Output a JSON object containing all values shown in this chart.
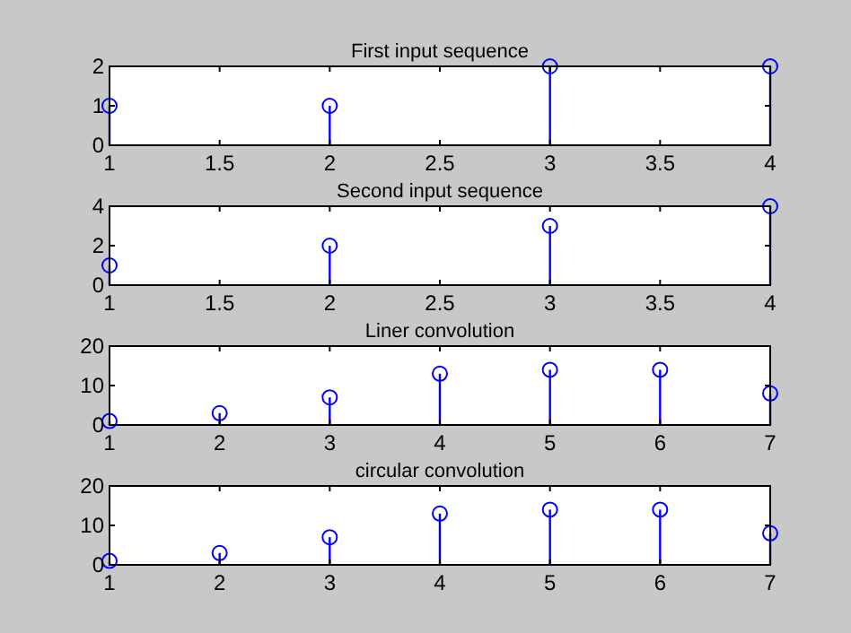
{
  "chart_data": [
    {
      "type": "lollipop",
      "title": "First input sequence",
      "x": [
        1,
        2,
        3,
        4
      ],
      "values": [
        1,
        1,
        2,
        2
      ],
      "color": "#0000ff",
      "marker": "circle",
      "xlim": [
        1,
        4
      ],
      "xticks": [
        1,
        1.5,
        2,
        2.5,
        3,
        3.5,
        4
      ],
      "ylim": [
        0,
        2
      ],
      "yticks": [
        0,
        1,
        2
      ]
    },
    {
      "type": "lollipop",
      "title": "Second input sequence",
      "x": [
        1,
        2,
        3,
        4
      ],
      "values": [
        1,
        2,
        3,
        4
      ],
      "color": "#0000ff",
      "marker": "circle",
      "xlim": [
        1,
        4
      ],
      "xticks": [
        1,
        1.5,
        2,
        2.5,
        3,
        3.5,
        4
      ],
      "ylim": [
        0,
        4
      ],
      "yticks": [
        0,
        2,
        4
      ]
    },
    {
      "type": "lollipop",
      "title": "Liner convolution",
      "x": [
        1,
        2,
        3,
        4,
        5,
        6,
        7
      ],
      "values": [
        1,
        3,
        7,
        13,
        14,
        14,
        8
      ],
      "color": "#0000ff",
      "marker": "circle",
      "xlim": [
        1,
        7
      ],
      "xticks": [
        1,
        2,
        3,
        4,
        5,
        6,
        7
      ],
      "ylim": [
        0,
        20
      ],
      "yticks": [
        0,
        10,
        20
      ]
    },
    {
      "type": "lollipop",
      "title": "circular convolution",
      "x": [
        1,
        2,
        3,
        4,
        5,
        6,
        7
      ],
      "values": [
        1,
        3,
        7,
        13,
        14,
        14,
        8
      ],
      "color": "#0000ff",
      "marker": "circle",
      "xlim": [
        1,
        7
      ],
      "xticks": [
        1,
        2,
        3,
        4,
        5,
        6,
        7
      ],
      "ylim": [
        0,
        20
      ],
      "yticks": [
        0,
        10,
        20
      ]
    }
  ]
}
